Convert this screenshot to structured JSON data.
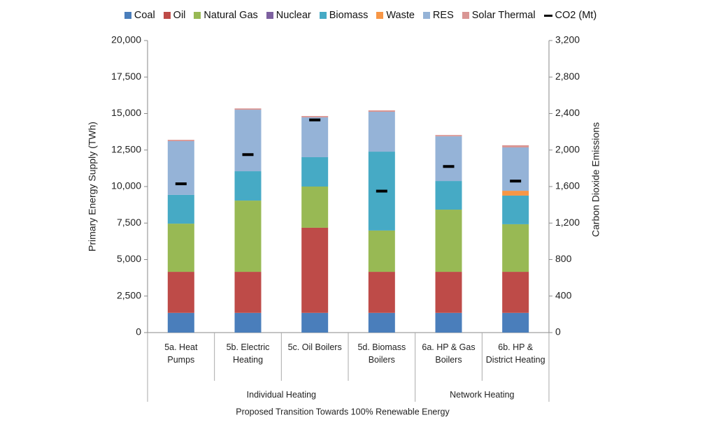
{
  "chart_data": {
    "type": "stacked_bar",
    "x_label": "Proposed Transition Towards 100% Renewable Energy",
    "y_label": "Primary Energy Supply (TWh)",
    "y2_label": "Carbon Dioxide Emissions",
    "categories": [
      "5a. Heat Pumps",
      "5b. Electric Heating",
      "5c. Oil Boilers",
      "5d. Biomass Boilers",
      "6a. HP & Gas Boilers",
      "6b. HP & District Heating"
    ],
    "groups": [
      {
        "name": "Individual Heating",
        "count": 4
      },
      {
        "name": "Network Heating",
        "count": 2
      }
    ],
    "series": [
      {
        "name": "Coal",
        "color": "#4a7ebb",
        "values": [
          1350,
          1350,
          1350,
          1350,
          1350,
          1350
        ]
      },
      {
        "name": "Oil",
        "color": "#be4b48",
        "values": [
          2810,
          2810,
          5830,
          2810,
          2810,
          2810
        ]
      },
      {
        "name": "Natural Gas",
        "color": "#98b954",
        "values": [
          3300,
          4880,
          2820,
          2830,
          4260,
          3260
        ]
      },
      {
        "name": "Nuclear",
        "color": "#7d60a0",
        "values": [
          0,
          0,
          0,
          0,
          0,
          0
        ]
      },
      {
        "name": "Biomass",
        "color": "#46aac5",
        "values": [
          1970,
          2010,
          2010,
          5400,
          1960,
          1960
        ]
      },
      {
        "name": "Waste",
        "color": "#f79646",
        "values": [
          0,
          0,
          0,
          0,
          0,
          330
        ]
      },
      {
        "name": "RES",
        "color": "#95b3d7",
        "values": [
          3680,
          4210,
          2730,
          2730,
          3060,
          2970
        ]
      },
      {
        "name": "Solar Thermal",
        "color": "#d99694",
        "values": [
          90,
          90,
          90,
          100,
          90,
          150
        ]
      },
      {
        "name": "CO2 (Mt)",
        "color": "#000000",
        "axis": "y2",
        "marker": "dash",
        "values": [
          1630,
          1950,
          2330,
          1550,
          1820,
          1660
        ]
      }
    ],
    "ylim": [
      0,
      20000
    ],
    "yticks": [
      0,
      {
        "value": 2500,
        "label": "2,500"
      },
      {
        "value": 5000,
        "label": "5,000"
      },
      {
        "value": 7500,
        "label": "7,500"
      },
      {
        "value": 10000,
        "label": "10,000"
      },
      {
        "value": 12500,
        "label": "12,500"
      },
      {
        "value": 15000,
        "label": "15,000"
      },
      {
        "value": 17500,
        "label": "17,500"
      },
      {
        "value": 20000,
        "label": "20,000"
      }
    ],
    "y2lim": [
      0,
      3200
    ],
    "y2ticks": [
      0,
      400,
      800,
      {
        "value": 1200,
        "label": "1,200"
      },
      {
        "value": 1600,
        "label": "1,600"
      },
      {
        "value": 2000,
        "label": "2,000"
      },
      {
        "value": 2400,
        "label": "2,400"
      },
      {
        "value": 2800,
        "label": "2,800"
      },
      {
        "value": 3200,
        "label": "3,200"
      }
    ],
    "legend": "top"
  }
}
